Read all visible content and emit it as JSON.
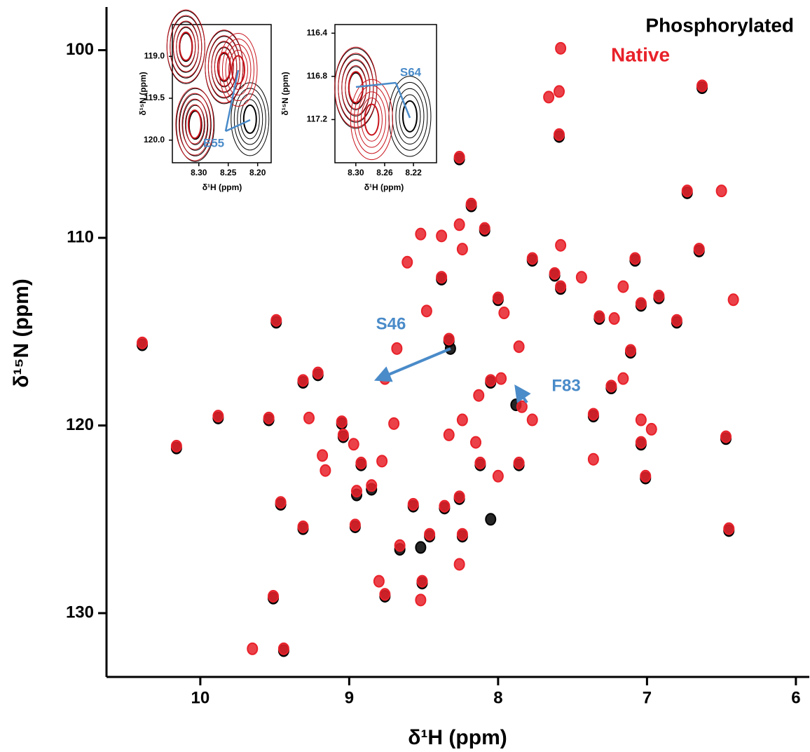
{
  "chart_data": [
    {
      "type": "scatter",
      "xlabel": "δ¹H (ppm)",
      "ylabel": "δ¹⁵N (ppm)",
      "xlim": [
        10.63,
        5.91
      ],
      "ylim": [
        97.7,
        133.4
      ],
      "xticks": [
        10,
        9,
        8,
        7,
        6
      ],
      "yticks": [
        100,
        110,
        120,
        130
      ],
      "annotations": [
        "S46",
        "F83"
      ],
      "series": [
        {
          "name": "Phosphorylated",
          "color": "#000000",
          "x": [
            10.39,
            10.16,
            9.88,
            9.49,
            9.54,
            9.46,
            9.31,
            9.51,
            9.44,
            9.31,
            9.21,
            9.05,
            9.04,
            8.95,
            8.85,
            8.96,
            8.66,
            8.76,
            8.51,
            8.46,
            8.36,
            8.26,
            8.24,
            8.32,
            8.33,
            8.26,
            8.18,
            8.09,
            8.38,
            8.0,
            8.05,
            7.88,
            8.05,
            8.52,
            7.86,
            7.77,
            7.62,
            7.58,
            7.59,
            6.63,
            6.73,
            7.32,
            7.04,
            6.92,
            6.8,
            6.65,
            7.08,
            7.11,
            7.24,
            7.36,
            7.04,
            7.01,
            6.47,
            6.45,
            8.12,
            8.57,
            8.92
          ],
          "y": [
            115.7,
            121.2,
            119.6,
            114.5,
            119.7,
            124.2,
            125.5,
            129.2,
            132.0,
            117.7,
            117.3,
            119.9,
            120.6,
            123.7,
            123.4,
            125.4,
            126.6,
            129.1,
            128.4,
            125.9,
            124.4,
            123.9,
            125.9,
            115.9,
            115.5,
            105.8,
            108.3,
            109.6,
            112.2,
            113.3,
            117.7,
            118.9,
            125.0,
            126.5,
            122.1,
            111.2,
            112.0,
            112.7,
            104.6,
            102.0,
            107.6,
            114.3,
            113.6,
            113.2,
            114.5,
            110.7,
            111.2,
            116.1,
            118.0,
            119.5,
            121.0,
            122.8,
            120.7,
            125.6,
            122.1,
            124.3,
            122.1
          ]
        },
        {
          "name": "Native",
          "color": "#e8212a",
          "x": [
            10.39,
            10.16,
            9.88,
            9.49,
            9.54,
            9.46,
            9.31,
            9.51,
            9.65,
            9.44,
            9.31,
            9.21,
            9.27,
            9.18,
            9.16,
            9.05,
            9.04,
            8.97,
            8.92,
            8.78,
            8.7,
            8.76,
            8.68,
            8.95,
            8.85,
            8.96,
            8.66,
            8.8,
            8.76,
            8.52,
            8.51,
            8.46,
            8.57,
            8.36,
            8.26,
            8.24,
            8.26,
            8.52,
            8.38,
            8.26,
            8.18,
            8.09,
            8.26,
            8.61,
            8.38,
            8.24,
            8.0,
            7.96,
            7.86,
            8.48,
            8.33,
            8.13,
            8.05,
            7.98,
            7.84,
            7.77,
            8.24,
            8.33,
            8.15,
            8.12,
            8.0,
            7.86,
            7.77,
            7.62,
            7.58,
            7.44,
            7.58,
            7.66,
            7.59,
            7.59,
            6.63,
            6.73,
            6.5,
            7.58,
            7.32,
            7.22,
            7.16,
            7.04,
            6.92,
            6.8,
            6.65,
            7.08,
            7.11,
            7.24,
            7.16,
            7.36,
            7.04,
            6.97,
            7.04,
            7.01,
            7.36,
            6.47,
            6.42,
            6.45
          ],
          "y": [
            115.6,
            121.1,
            119.5,
            114.4,
            119.6,
            124.1,
            125.4,
            129.1,
            131.9,
            131.9,
            117.6,
            117.2,
            119.6,
            121.6,
            122.4,
            119.8,
            120.5,
            121.0,
            122.0,
            121.9,
            119.9,
            117.5,
            115.9,
            123.5,
            123.2,
            125.3,
            126.4,
            128.3,
            129.0,
            129.3,
            128.3,
            125.8,
            124.2,
            124.3,
            123.8,
            125.8,
            127.4,
            109.8,
            109.9,
            109.3,
            108.2,
            109.5,
            105.7,
            111.3,
            112.1,
            110.6,
            113.2,
            114.0,
            115.8,
            113.9,
            115.4,
            118.4,
            117.6,
            117.5,
            119.0,
            119.7,
            119.7,
            120.5,
            120.9,
            122.0,
            122.7,
            122.0,
            111.1,
            111.9,
            112.6,
            112.1,
            99.9,
            102.5,
            102.2,
            104.5,
            101.9,
            107.5,
            107.5,
            110.4,
            114.2,
            114.3,
            112.6,
            113.5,
            113.1,
            114.4,
            110.6,
            111.1,
            116.0,
            117.9,
            117.5,
            119.4,
            119.7,
            120.2,
            120.9,
            122.7,
            121.8,
            120.6,
            113.3,
            125.5
          ]
        }
      ]
    },
    {
      "type": "scatter",
      "xlabel": "δ¹H (ppm)",
      "ylabel": "δ¹⁵N (ppm)",
      "xlim": [
        8.345,
        8.177
      ],
      "ylim": [
        118.62,
        120.27
      ],
      "xticks": [
        {
          "value": 8.3,
          "label": "8.30"
        },
        8.25,
        {
          "value": 8.2,
          "label": "8.20"
        }
      ],
      "yticks": [
        {
          "value": 119,
          "label": "119.0"
        },
        119.5,
        {
          "value": 120,
          "label": "120.0"
        }
      ],
      "annotations": [
        "E55"
      ],
      "series": [
        {
          "color": "#000000",
          "x": [
            8.306,
            8.322,
            8.257,
            8.213
          ],
          "y": [
            119.82,
            118.89,
            119.13,
            119.75
          ]
        },
        {
          "color": "#c8141c",
          "x": [
            8.307,
            8.322,
            8.257,
            8.233
          ],
          "y": [
            119.81,
            118.88,
            119.12,
            119.16
          ]
        }
      ]
    },
    {
      "type": "scatter",
      "xlabel": "δ¹H (ppm)",
      "ylabel": "δ¹⁵N (ppm)",
      "xlim": [
        8.329,
        8.188
      ],
      "ylim": [
        116.32,
        117.6
      ],
      "xticks": [
        {
          "value": 8.3,
          "label": "8.30"
        },
        8.26,
        8.22
      ],
      "yticks": [
        116.4,
        116.8,
        117.2
      ],
      "annotations": [
        "S64"
      ],
      "series": [
        {
          "color": "#000000",
          "x": [
            8.225,
            8.3
          ],
          "y": [
            117.17,
            116.91
          ]
        },
        {
          "color": "#c8141c",
          "x": [
            8.3,
            8.278
          ],
          "y": [
            116.9,
            117.2
          ]
        }
      ]
    }
  ]
}
